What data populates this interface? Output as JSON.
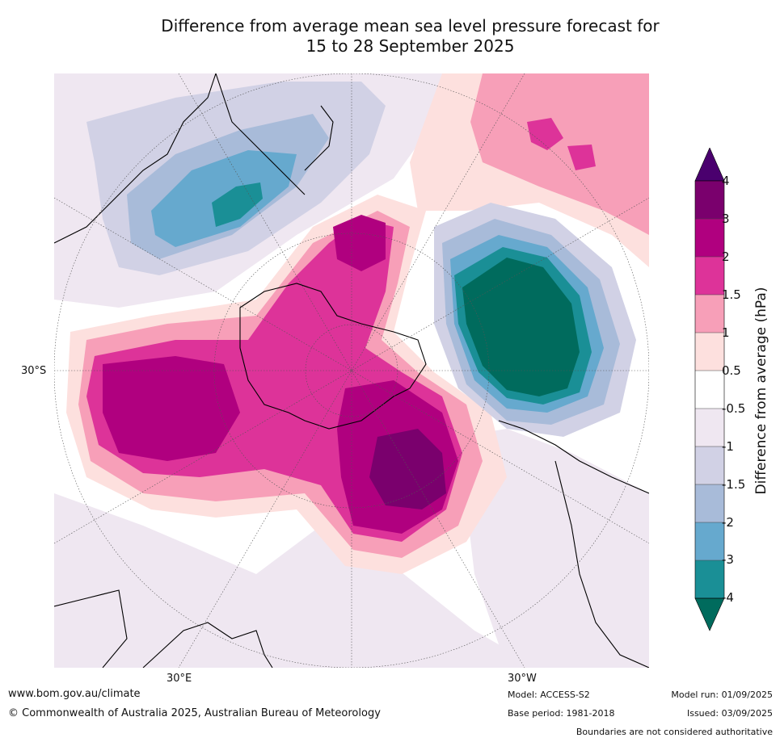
{
  "title": {
    "line1": "Difference from average mean sea level pressure forecast for",
    "line2": "15 to 28 September 2025"
  },
  "map": {
    "projection": "south-polar stereographic",
    "labels": {
      "lat": "30°S",
      "lon_east": "30°E",
      "lon_west": "30°W"
    }
  },
  "colorbar": {
    "title": "Difference from average (hPa)",
    "ticks": [
      "4",
      "3",
      "2",
      "1.5",
      "1",
      "0.5",
      "-0.5",
      "-1",
      "-1.5",
      "-2",
      "-3",
      "-4"
    ],
    "colors": [
      "#4a006e",
      "#7a006d",
      "#b0007f",
      "#dd3399",
      "#f79fb8",
      "#fde0de",
      "#ffffff",
      "#efe7f1",
      "#d1d1e5",
      "#a8bbd9",
      "#66a9ce",
      "#1a8f96",
      "#006b5d"
    ]
  },
  "footer": {
    "url": "www.bom.gov.au/climate",
    "copyright": "© Commonwealth of Australia 2025, Australian Bureau of Meteorology",
    "model": "Model: ACCESS-S2",
    "base_period": "Base period: 1981-2018",
    "model_run": "Model run: 01/09/2025",
    "issued": "Issued: 03/09/2025",
    "disclaimer": "Boundaries are not considered authoritative"
  }
}
